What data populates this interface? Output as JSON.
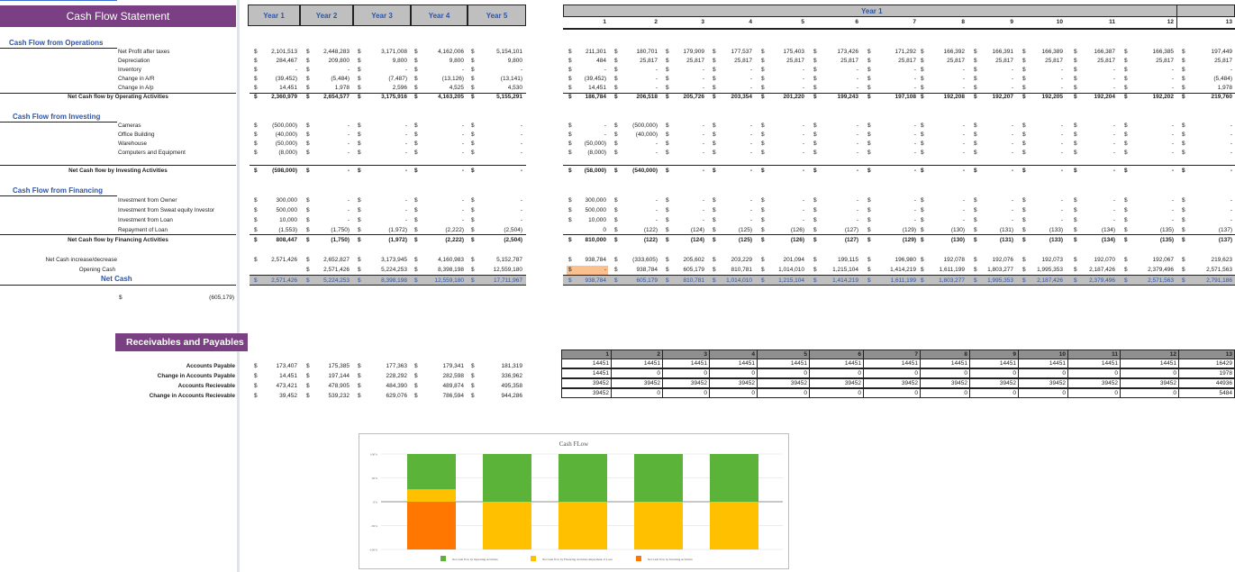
{
  "title": "Cash Flow Statement",
  "currency_symbol": "$",
  "year_headers": [
    "Year 1",
    "Year 2",
    "Year 3",
    "Year 4",
    "Year 5"
  ],
  "monthly": {
    "group_header": "Year 1",
    "columns": [
      "1",
      "2",
      "3",
      "4",
      "5",
      "6",
      "7",
      "8",
      "9",
      "10",
      "11",
      "12",
      "13"
    ]
  },
  "sections": {
    "operations": {
      "title": "Cash Flow from Operations",
      "rows": [
        {
          "label": "Net Profit after taxes",
          "years": [
            "2,101,513",
            "2,448,283",
            "3,171,008",
            "4,162,006",
            "5,154,101"
          ],
          "months": [
            "211,301",
            "180,701",
            "179,909",
            "177,537",
            "175,403",
            "173,426",
            "171,292",
            "166,392",
            "166,391",
            "166,389",
            "166,387",
            "166,385",
            "197,449"
          ]
        },
        {
          "label": "Depreciation",
          "years": [
            "284,467",
            "209,800",
            "9,800",
            "9,800",
            "9,800"
          ],
          "months": [
            "484",
            "25,817",
            "25,817",
            "25,817",
            "25,817",
            "25,817",
            "25,817",
            "25,817",
            "25,817",
            "25,817",
            "25,817",
            "25,817",
            "25,817"
          ]
        },
        {
          "label": "Inventory",
          "years": [
            "-",
            "-",
            "-",
            "-",
            "-"
          ],
          "months": [
            "-",
            "-",
            "-",
            "-",
            "-",
            "-",
            "-",
            "-",
            "-",
            "-",
            "-",
            "-",
            "-"
          ]
        },
        {
          "label": "Change in A/R",
          "years": [
            "(39,452)",
            "(5,484)",
            "(7,487)",
            "(13,126)",
            "(13,141)"
          ],
          "months": [
            "(39,452)",
            "-",
            "-",
            "-",
            "-",
            "-",
            "-",
            "-",
            "-",
            "-",
            "-",
            "-",
            "(5,484)"
          ]
        },
        {
          "label": "Change in A/p",
          "years": [
            "14,451",
            "1,978",
            "2,596",
            "4,525",
            "4,530"
          ],
          "months": [
            "14,451",
            "-",
            "-",
            "-",
            "-",
            "-",
            "-",
            "-",
            "-",
            "-",
            "-",
            "-",
            "1,978"
          ]
        }
      ],
      "total": {
        "label": "Net Cash flow by Operating Activities",
        "years": [
          "2,360,979",
          "2,654,577",
          "3,175,916",
          "4,163,205",
          "5,155,291"
        ],
        "months": [
          "186,784",
          "206,518",
          "205,726",
          "203,354",
          "201,220",
          "199,243",
          "197,108",
          "192,208",
          "192,207",
          "192,205",
          "192,204",
          "192,202",
          "219,760"
        ]
      }
    },
    "investing": {
      "title": "Cash Flow from Investing",
      "rows": [
        {
          "label": "Cameras",
          "years": [
            "(500,000)",
            "-",
            "-",
            "-",
            "-"
          ],
          "months": [
            "-",
            "(500,000)",
            "-",
            "-",
            "-",
            "-",
            "-",
            "-",
            "-",
            "-",
            "-",
            "-",
            "-"
          ]
        },
        {
          "label": "Office Building",
          "years": [
            "(40,000)",
            "-",
            "-",
            "-",
            "-"
          ],
          "months": [
            "-",
            "(40,000)",
            "-",
            "-",
            "-",
            "-",
            "-",
            "-",
            "-",
            "-",
            "-",
            "-",
            "-"
          ]
        },
        {
          "label": "Warehouse",
          "years": [
            "(50,000)",
            "-",
            "-",
            "-",
            "-"
          ],
          "months": [
            "(50,000)",
            "-",
            "-",
            "-",
            "-",
            "-",
            "-",
            "-",
            "-",
            "-",
            "-",
            "-",
            "-"
          ]
        },
        {
          "label": "Computers and Equipment",
          "years": [
            "(8,000)",
            "-",
            "-",
            "-",
            "-"
          ],
          "months": [
            "(8,000)",
            "-",
            "-",
            "-",
            "-",
            "-",
            "-",
            "-",
            "-",
            "-",
            "-",
            "-",
            "-"
          ]
        }
      ],
      "total": {
        "label": "Net Cash flow by Investing Activities",
        "years": [
          "(598,000)",
          "-",
          "-",
          "-",
          "-"
        ],
        "months": [
          "(58,000)",
          "(540,000)",
          "-",
          "-",
          "-",
          "-",
          "-",
          "-",
          "-",
          "-",
          "-",
          "-",
          "-"
        ]
      }
    },
    "financing": {
      "title": "Cash Flow from Financing",
      "rows": [
        {
          "label": "Investment from Owner",
          "years": [
            "300,000",
            "-",
            "-",
            "-",
            "-"
          ],
          "months": [
            "300,000",
            "-",
            "-",
            "-",
            "-",
            "-",
            "-",
            "-",
            "-",
            "-",
            "-",
            "-",
            "-"
          ]
        },
        {
          "label": "Investment from Sweat equity Investor",
          "years": [
            "500,000",
            "-",
            "-",
            "-",
            "-"
          ],
          "months": [
            "500,000",
            "-",
            "-",
            "-",
            "-",
            "-",
            "-",
            "-",
            "-",
            "-",
            "-",
            "-",
            "-"
          ]
        },
        {
          "label": "Investment from Loan",
          "years": [
            "10,000",
            "-",
            "-",
            "-",
            "-"
          ],
          "months": [
            "10,000",
            "-",
            "-",
            "-",
            "-",
            "-",
            "-",
            "-",
            "-",
            "-",
            "-",
            "-",
            "-"
          ]
        },
        {
          "label": "Repayment of Loan",
          "years": [
            "(1,553)",
            "(1,750)",
            "(1,972)",
            "(2,222)",
            "(2,504)"
          ],
          "months": [
            {
              "value": "0",
              "currency": false
            },
            "(122)",
            "(124)",
            "(125)",
            "(126)",
            "(127)",
            "(129)",
            "(130)",
            "(131)",
            "(133)",
            "(134)",
            "(135)",
            "(137)"
          ]
        }
      ],
      "total": {
        "label": "Net Cash flow by Financing Activities",
        "years": [
          "808,447",
          "(1,750)",
          "(1,972)",
          "(2,222)",
          "(2,504)"
        ],
        "months": [
          "810,000",
          "(122)",
          "(124)",
          "(125)",
          "(126)",
          "(127)",
          "(129)",
          "(130)",
          "(131)",
          "(133)",
          "(134)",
          "(135)",
          "(137)"
        ]
      }
    }
  },
  "summary": {
    "increase": {
      "label": "Net Cash increase/decrease",
      "years": [
        "2,571,426",
        "2,652,827",
        "3,173,945",
        "4,160,983",
        "5,152,787"
      ],
      "months": [
        "938,784",
        "(333,605)",
        "205,602",
        "203,229",
        "201,094",
        "199,115",
        "196,980",
        "192,078",
        "192,076",
        "192,073",
        "192,070",
        "192,067",
        "219,623"
      ]
    },
    "opening": {
      "label": "Opening Cash",
      "years": [
        {
          "value": "",
          "currency": false
        },
        "2,571,426",
        "5,224,253",
        "8,398,198",
        "12,559,180"
      ],
      "months": [
        {
          "value": "-",
          "highlight": "#fac090"
        },
        "938,784",
        "605,179",
        "810,781",
        "1,014,010",
        "1,215,104",
        "1,414,219",
        "1,611,199",
        "1,803,277",
        "1,995,353",
        "2,187,426",
        "2,379,496",
        "2,571,563"
      ]
    },
    "net": {
      "label": "Net Cash",
      "years": [
        "2,571,426",
        "5,224,253",
        "8,398,198",
        "12,559,180",
        "17,711,967"
      ],
      "months": [
        "938,784",
        "605,179",
        "810,781",
        "1,014,010",
        "1,215,104",
        "1,414,219",
        "1,611,199",
        "1,803,277",
        "1,995,353",
        "2,187,426",
        "2,379,496",
        "2,571,563",
        "2,791,186"
      ]
    },
    "extra_value": "(605,179)"
  },
  "receivables": {
    "title": "Receivables and Payables",
    "rows": [
      {
        "label": "Accounts Payable",
        "years": [
          "173,407",
          "175,385",
          "177,363",
          "179,341",
          "181,319"
        ]
      },
      {
        "label": "Change in Accounts Payable",
        "years": [
          "14,451",
          "197,144",
          "228,292",
          "282,598",
          "336,962"
        ]
      },
      {
        "label": "Accounts Recievable",
        "years": [
          "473,421",
          "478,905",
          "484,390",
          "489,874",
          "495,358"
        ]
      },
      {
        "label": "Change in Accounts Recievable",
        "years": [
          "39,452",
          "539,232",
          "629,076",
          "786,594",
          "944,286"
        ]
      }
    ],
    "grid": {
      "columns": [
        "1",
        "2",
        "3",
        "4",
        "5",
        "6",
        "7",
        "8",
        "9",
        "10",
        "11",
        "12",
        "13"
      ],
      "rows": [
        [
          "14451",
          "14451",
          "14451",
          "14451",
          "14451",
          "14451",
          "14451",
          "14451",
          "14451",
          "14451",
          "14451",
          "14451",
          "16429"
        ],
        [
          "14451",
          "0",
          "0",
          "0",
          "0",
          "0",
          "0",
          "0",
          "0",
          "0",
          "0",
          "0",
          "1978"
        ],
        [
          "39452",
          "39452",
          "39452",
          "39452",
          "39452",
          "39452",
          "39452",
          "39452",
          "39452",
          "39452",
          "39452",
          "39452",
          "44936"
        ],
        [
          "39452",
          "0",
          "0",
          "0",
          "0",
          "0",
          "0",
          "0",
          "0",
          "0",
          "0",
          "0",
          "5484"
        ]
      ]
    }
  },
  "colors": {
    "brand": "#7b3f83",
    "header_gray": "#bfbfbf",
    "accent_blue": "#2f55a4",
    "highlight": "#fac090"
  },
  "chart_data": {
    "type": "bar",
    "stacked": true,
    "title": "Cash FLow",
    "ylim": [
      -100,
      100
    ],
    "y_unit": "%",
    "yticks": [
      "100%",
      "50%",
      "0%",
      "-50%",
      "-100%"
    ],
    "grid": true,
    "legend_position": "bottom",
    "series": [
      {
        "name": "Net Cash flow by Operating Activities",
        "color": "#5bb33a",
        "values": [
          74,
          100,
          100,
          100,
          100
        ]
      },
      {
        "name": "Net Cash flow by Financing Activities Repayment of Loan",
        "color": "#ffc000",
        "values": [
          26,
          -100,
          -100,
          -100,
          -100
        ]
      },
      {
        "name": "Net Cash flow by Investing Activities",
        "color": "#ff7700",
        "values": [
          -100,
          0,
          0,
          0,
          0
        ]
      }
    ]
  }
}
